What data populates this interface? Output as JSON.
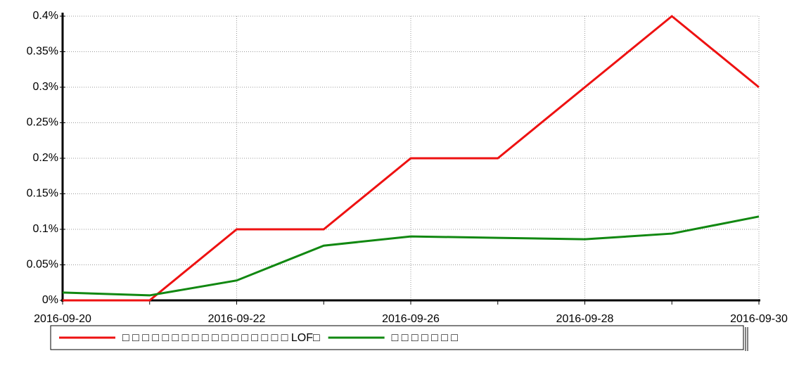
{
  "chart_data": {
    "type": "line",
    "categories": [
      "2016-09-20",
      null,
      "2016-09-22",
      null,
      "2016-09-26",
      null,
      "2016-09-28",
      null,
      "2016-09-30"
    ],
    "series": [
      {
        "name": "□ □ □ □ □ □ □ □ □ □ □ □ □ □ □ □ □ LOF□",
        "color": "#ee1111",
        "values": [
          0,
          0,
          0.1,
          0.1,
          0.2,
          0.2,
          0.3,
          0.4,
          0.3
        ]
      },
      {
        "name": "□ □ □ □ □ □ □",
        "color": "#118811",
        "values": [
          0.011,
          0.007,
          0.028,
          0.077,
          0.09,
          0.088,
          0.086,
          0.094,
          0.118
        ]
      }
    ],
    "ylim": [
      0,
      0.4
    ],
    "yticks": [
      {
        "value": 0,
        "label": "0%"
      },
      {
        "value": 0.05,
        "label": "0.05%"
      },
      {
        "value": 0.1,
        "label": "0.1%"
      },
      {
        "value": 0.15,
        "label": "0.15%"
      },
      {
        "value": 0.2,
        "label": "0.2%"
      },
      {
        "value": 0.25,
        "label": "0.25%"
      },
      {
        "value": 0.3,
        "label": "0.3%"
      },
      {
        "value": 0.35,
        "label": "0.35%"
      },
      {
        "value": 0.4,
        "label": "0.4%"
      }
    ],
    "grid": true,
    "legend": "bottom"
  }
}
